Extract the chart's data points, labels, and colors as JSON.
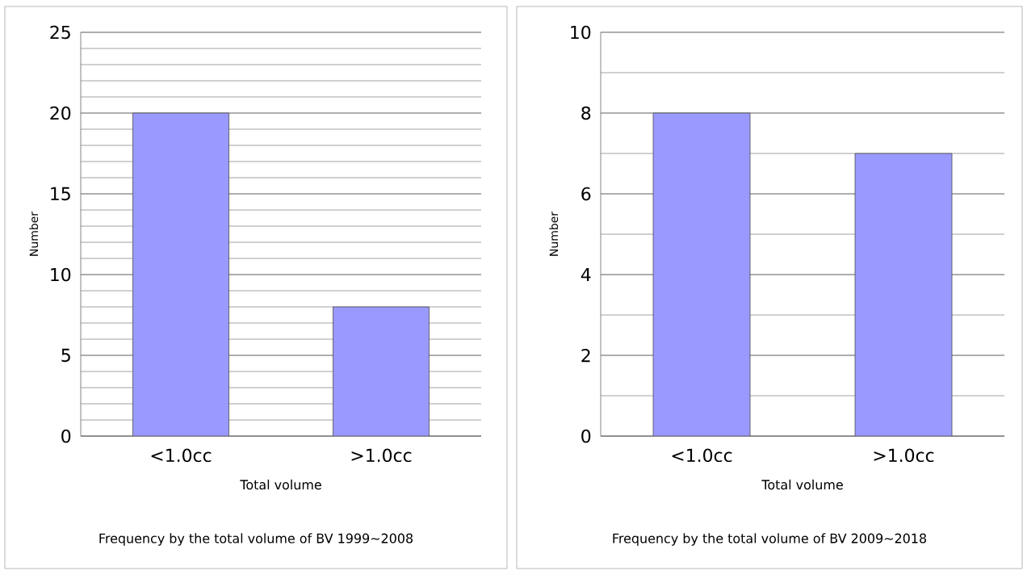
{
  "chart_data": [
    {
      "type": "bar",
      "title": "Frequency by the total volume of BV 1999~2008",
      "xlabel": "Total volume",
      "ylabel": "Number",
      "categories": [
        "<1.0cc",
        ">1.0cc"
      ],
      "values": [
        20,
        8
      ],
      "color": "#9999ff",
      "ylim": [
        0,
        25
      ],
      "yticks": [
        0,
        5,
        10,
        15,
        20,
        25
      ],
      "grid": "y"
    },
    {
      "type": "bar",
      "title": "Frequency by the total volume of BV 2009~2018",
      "xlabel": "Total volume",
      "ylabel": "Number",
      "categories": [
        "<1.0cc",
        ">1.0cc"
      ],
      "values": [
        8,
        7
      ],
      "color": "#9999ff",
      "ylim": [
        0,
        10
      ],
      "yticks": [
        0,
        2,
        4,
        6,
        8,
        10
      ],
      "grid": "y"
    }
  ]
}
